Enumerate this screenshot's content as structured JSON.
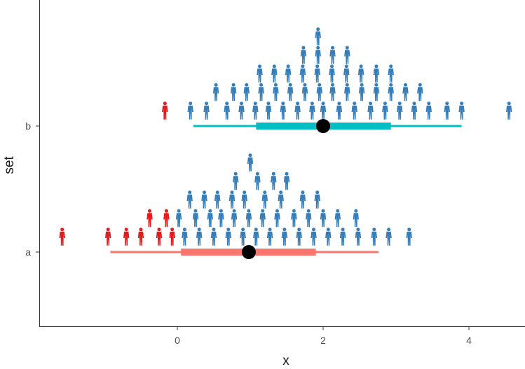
{
  "chart_data": {
    "type": "scatter",
    "subtype": "quantile-dotplot-with-interval",
    "xlabel": "x",
    "ylabel": "set",
    "xlim": [
      -1.9,
      4.8
    ],
    "x_ticks": [
      0,
      2,
      4
    ],
    "x_tick_labels": [
      "0",
      "2",
      "4"
    ],
    "categories": [
      "a",
      "b"
    ],
    "grid": false,
    "legend": "none",
    "marker": "person-icon",
    "colors": {
      "below_zero": "#e41a1c",
      "above_zero": "#377eb8",
      "interval_a": "#f8766d",
      "interval_b": "#00bfc4",
      "point": "#000000",
      "axis": "#333333"
    },
    "series": [
      {
        "set": "a",
        "point_estimate": 0.98,
        "interval_66": [
          0.05,
          1.9
        ],
        "interval_95": [
          -0.92,
          2.76
        ],
        "rows": [
          [
            -1.58,
            -0.95,
            -0.7,
            -0.5,
            -0.25,
            -0.07,
            0.1,
            0.3,
            0.5,
            0.7,
            0.9,
            1.08,
            1.27,
            1.47,
            1.67,
            1.87,
            2.07,
            2.27,
            2.48,
            2.7,
            2.9,
            3.18
          ],
          [
            -0.38,
            -0.15,
            0.02,
            0.25,
            0.45,
            0.6,
            0.78,
            0.98,
            1.17,
            1.37,
            1.6,
            1.8,
            2.0,
            2.2,
            2.45
          ],
          [
            0.17,
            0.37,
            0.55,
            0.75,
            0.92,
            1.2,
            1.42,
            1.72,
            1.92
          ],
          [
            0.8,
            1.1,
            1.32,
            1.5
          ],
          [
            1.0
          ]
        ]
      },
      {
        "set": "b",
        "point_estimate": 2.0,
        "interval_66": [
          1.08,
          2.93
        ],
        "interval_95": [
          0.22,
          3.9
        ],
        "rows": [
          [
            -0.17,
            0.18,
            0.4,
            0.68,
            0.88,
            1.07,
            1.25,
            1.45,
            1.65,
            1.85,
            2.0,
            2.22,
            2.43,
            2.65,
            2.85,
            3.05,
            3.25,
            3.45,
            3.7,
            3.9,
            4.55
          ],
          [
            0.53,
            0.77,
            0.95,
            1.15,
            1.35,
            1.55,
            1.75,
            1.95,
            2.13,
            2.33,
            2.53,
            2.73,
            2.93,
            3.13,
            3.33
          ],
          [
            1.13,
            1.33,
            1.52,
            1.72,
            1.92,
            2.12,
            2.32,
            2.52,
            2.73,
            2.93
          ],
          [
            1.73,
            1.93,
            2.13,
            2.33
          ],
          [
            1.93
          ]
        ]
      }
    ]
  }
}
